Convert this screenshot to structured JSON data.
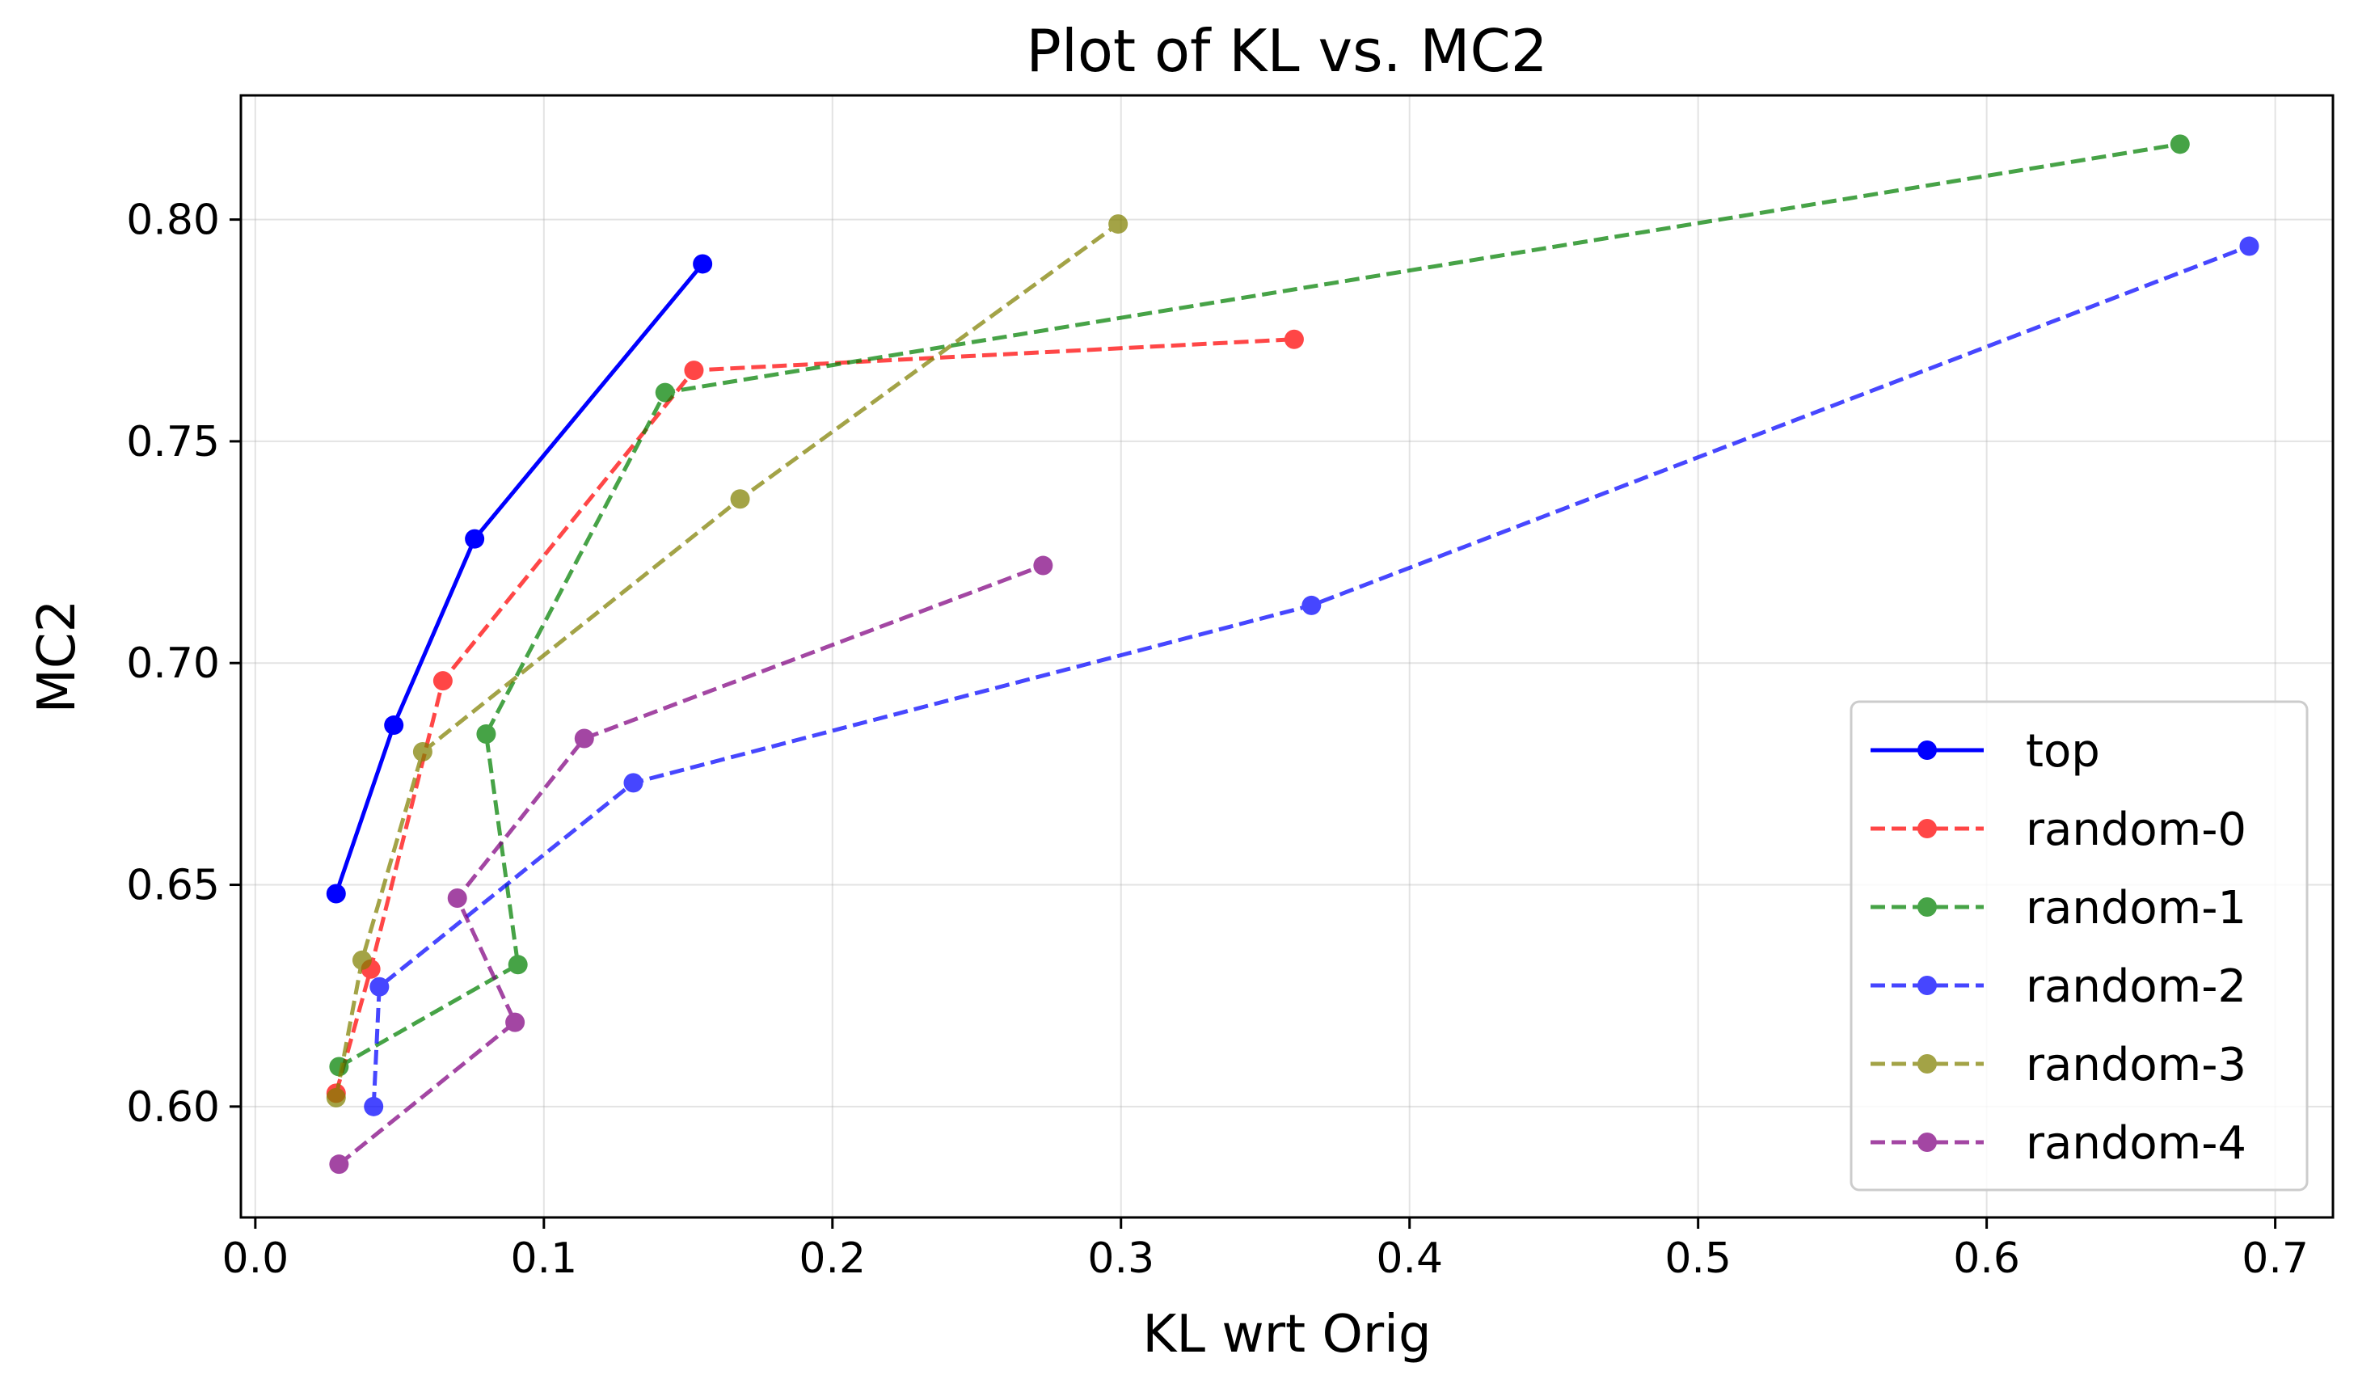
{
  "chart_data": {
    "type": "line",
    "title": "Plot of KL vs. MC2",
    "xlabel": "KL wrt Orig",
    "ylabel": "MC2",
    "xlim": [
      -0.005,
      0.72
    ],
    "ylim": [
      0.575,
      0.828
    ],
    "xticks": [
      0.0,
      0.1,
      0.2,
      0.3,
      0.4,
      0.5,
      0.6,
      0.7
    ],
    "xtick_labels": [
      "0.0",
      "0.1",
      "0.2",
      "0.3",
      "0.4",
      "0.5",
      "0.6",
      "0.7"
    ],
    "yticks": [
      0.6,
      0.65,
      0.7,
      0.75,
      0.8
    ],
    "ytick_labels": [
      "0.60",
      "0.65",
      "0.70",
      "0.75",
      "0.80"
    ],
    "grid": true,
    "legend_position": "lower-right",
    "series": [
      {
        "name": "top",
        "color": "#0000ff",
        "dashed": false,
        "opacity": 1.0,
        "x": [
          0.028,
          0.048,
          0.076,
          0.155
        ],
        "y": [
          0.648,
          0.686,
          0.728,
          0.79
        ]
      },
      {
        "name": "random-0",
        "color": "#ff0000",
        "dashed": true,
        "opacity": 0.72,
        "x": [
          0.028,
          0.04,
          0.065,
          0.152,
          0.36
        ],
        "y": [
          0.603,
          0.631,
          0.696,
          0.766,
          0.773
        ]
      },
      {
        "name": "random-1",
        "color": "#008000",
        "dashed": true,
        "opacity": 0.72,
        "x": [
          0.029,
          0.091,
          0.08,
          0.142,
          0.667
        ],
        "y": [
          0.609,
          0.632,
          0.684,
          0.761,
          0.817
        ]
      },
      {
        "name": "random-2",
        "color": "#0000ff",
        "dashed": true,
        "opacity": 0.72,
        "x": [
          0.041,
          0.043,
          0.131,
          0.366,
          0.691
        ],
        "y": [
          0.6,
          0.627,
          0.673,
          0.713,
          0.794
        ]
      },
      {
        "name": "random-3",
        "color": "#808000",
        "dashed": true,
        "opacity": 0.72,
        "x": [
          0.028,
          0.037,
          0.058,
          0.168,
          0.299
        ],
        "y": [
          0.602,
          0.633,
          0.68,
          0.737,
          0.799
        ]
      },
      {
        "name": "random-4",
        "color": "#800080",
        "dashed": true,
        "opacity": 0.72,
        "x": [
          0.029,
          0.09,
          0.07,
          0.114,
          0.273
        ],
        "y": [
          0.587,
          0.619,
          0.647,
          0.683,
          0.722
        ]
      }
    ]
  }
}
